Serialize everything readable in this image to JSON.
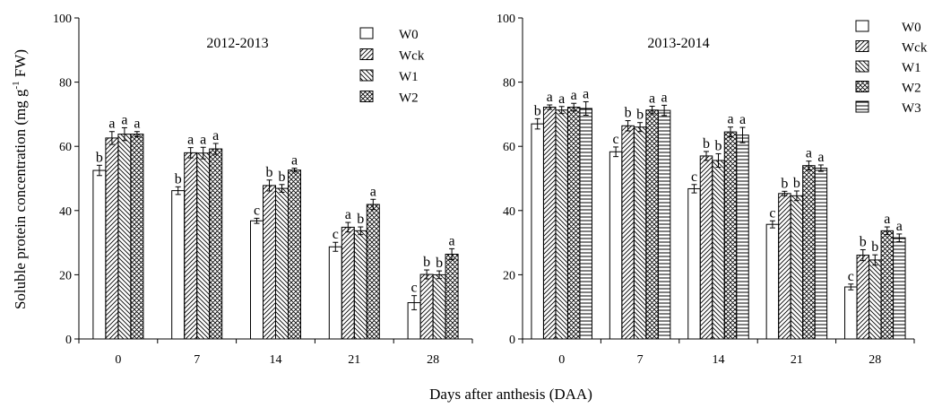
{
  "figure": {
    "ylabel": "Soluble protein concentration (mg g",
    "ylabel_sup": "-1",
    "ylabel_end": " FW)",
    "xlabel": "Days after anthesis (DAA)"
  },
  "chart_data": [
    {
      "type": "bar",
      "title": "2012-2013",
      "categories": [
        "0",
        "7",
        "14",
        "21",
        "28"
      ],
      "ylim": [
        0,
        100
      ],
      "yticks": [
        "0",
        "20",
        "40",
        "60",
        "80",
        "100"
      ],
      "grid": false,
      "legend": "top-right",
      "series": [
        {
          "name": "W0",
          "pattern": "none",
          "values": [
            52.5,
            46.2,
            36.8,
            28.7,
            11.3
          ],
          "errors": [
            1.6,
            1.2,
            0.8,
            1.4,
            2.2
          ],
          "letters": [
            "b",
            "b",
            "c",
            "c",
            "c"
          ]
        },
        {
          "name": "Wck",
          "pattern": "diag",
          "values": [
            62.6,
            58.0,
            47.8,
            34.8,
            20.1
          ],
          "errors": [
            2.0,
            1.6,
            1.7,
            1.5,
            1.4
          ],
          "letters": [
            "a",
            "a",
            "b",
            "a",
            "b"
          ]
        },
        {
          "name": "W1",
          "pattern": "backdiag",
          "values": [
            63.8,
            57.9,
            46.9,
            33.7,
            20.0
          ],
          "errors": [
            2.0,
            1.8,
            1.2,
            1.2,
            1.2
          ],
          "letters": [
            "a",
            "a",
            "b",
            "b",
            "b"
          ]
        },
        {
          "name": "W2",
          "pattern": "cross",
          "values": [
            63.8,
            59.2,
            52.6,
            41.9,
            26.4
          ],
          "errors": [
            0.8,
            1.7,
            0.6,
            1.6,
            1.7
          ],
          "letters": [
            "a",
            "a",
            "a",
            "a",
            "a"
          ]
        }
      ]
    },
    {
      "type": "bar",
      "title": "2013-2014",
      "categories": [
        "0",
        "7",
        "14",
        "21",
        "28"
      ],
      "ylim": [
        0,
        100
      ],
      "yticks": [
        "0",
        "20",
        "40",
        "60",
        "80",
        "100"
      ],
      "grid": false,
      "legend": "top-right",
      "series": [
        {
          "name": "W0",
          "pattern": "none",
          "values": [
            67.0,
            58.3,
            46.8,
            35.7,
            16.2
          ],
          "errors": [
            1.6,
            1.5,
            1.3,
            1.1,
            0.9
          ],
          "letters": [
            "b",
            "c",
            "c",
            "c",
            "c"
          ]
        },
        {
          "name": "Wck",
          "pattern": "diag",
          "values": [
            72.2,
            66.4,
            57.0,
            45.3,
            26.1
          ],
          "errors": [
            0.7,
            1.6,
            1.4,
            0.7,
            1.7
          ],
          "letters": [
            "a",
            "b",
            "b",
            "b",
            "b"
          ]
        },
        {
          "name": "W1",
          "pattern": "backdiag",
          "values": [
            71.3,
            66.0,
            55.6,
            44.6,
            24.6
          ],
          "errors": [
            1.1,
            1.4,
            2.1,
            1.5,
            1.6
          ],
          "letters": [
            "a",
            "b",
            "b",
            "b",
            "b"
          ]
        },
        {
          "name": "W2",
          "pattern": "cross",
          "values": [
            72.2,
            71.3,
            64.5,
            54.0,
            33.7
          ],
          "errors": [
            1.2,
            1.2,
            1.5,
            1.4,
            1.2
          ],
          "letters": [
            "a",
            "a",
            "a",
            "a",
            "a"
          ]
        },
        {
          "name": "W3",
          "pattern": "horiz",
          "values": [
            71.8,
            71.2,
            63.5,
            53.2,
            31.5
          ],
          "errors": [
            2.1,
            1.6,
            2.4,
            1.0,
            1.2
          ],
          "letters": [
            "a",
            "a",
            "a",
            "a",
            "a"
          ]
        }
      ]
    }
  ]
}
